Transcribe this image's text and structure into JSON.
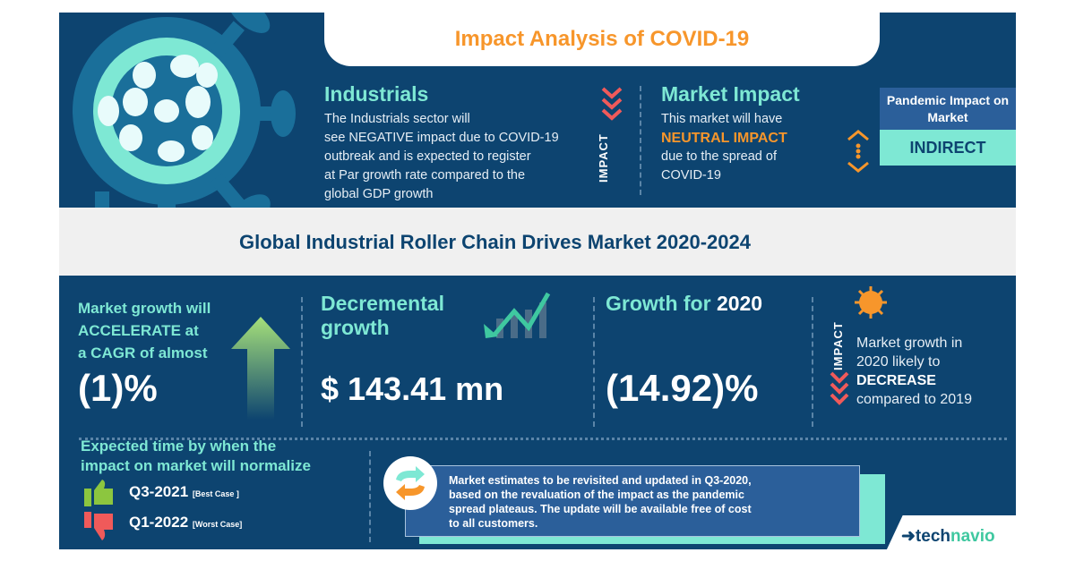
{
  "header": {
    "title": "Impact Analysis of COVID-19"
  },
  "industrials": {
    "title": "Industrials",
    "lines": [
      "The Industrials sector will",
      "see NEGATIVE impact due to COVID-19",
      "outbreak and is expected to register",
      "at Par growth rate compared to the",
      "global GDP growth"
    ],
    "impact_label": "IMPACT"
  },
  "market_impact": {
    "title": "Market Impact",
    "line1": "This market will have",
    "highlight": "NEUTRAL IMPACT",
    "line2": "due to the spread of",
    "line3": "COVID-19"
  },
  "pandemic": {
    "label": "Pandemic Impact on Market",
    "value": "INDIRECT"
  },
  "market_title": "Global Industrial Roller Chain Drives Market 2020-2024",
  "cagr": {
    "lines": [
      "Market growth will",
      "ACCELERATE at",
      "a CAGR of almost"
    ],
    "value": "(1)%"
  },
  "decremental": {
    "line1": "Decremental",
    "line2": "growth",
    "value": "$ 143.41 mn"
  },
  "growth2020": {
    "label": "Growth for",
    "year": "2020",
    "value": "(14.92)%"
  },
  "impact2020": {
    "impact_label": "IMPACT",
    "line1": "Market growth in",
    "line2": "2020 likely to",
    "highlight": "DECREASE",
    "line3": "compared to 2019"
  },
  "normalize": {
    "title_line1": "Expected time by when the",
    "title_line2": "impact on market will normalize",
    "best": {
      "value": "Q3-2021",
      "note": "[Best Case ]"
    },
    "worst": {
      "value": "Q1-2022",
      "note": "[Worst Case]"
    }
  },
  "notice": {
    "lines": [
      "Market estimates to be revisited and updated in Q3-2020,",
      "based on the revaluation of the impact as the pandemic",
      "spread plateaus. The update will be available free of cost",
      "to all customers."
    ]
  },
  "brand": {
    "part1": "tech",
    "part2": "navio"
  },
  "colors": {
    "navy": "#0d4470",
    "teal": "#7ee8d4",
    "orange": "#f7962b",
    "red": "#f05a5a",
    "green": "#8cc63f"
  }
}
